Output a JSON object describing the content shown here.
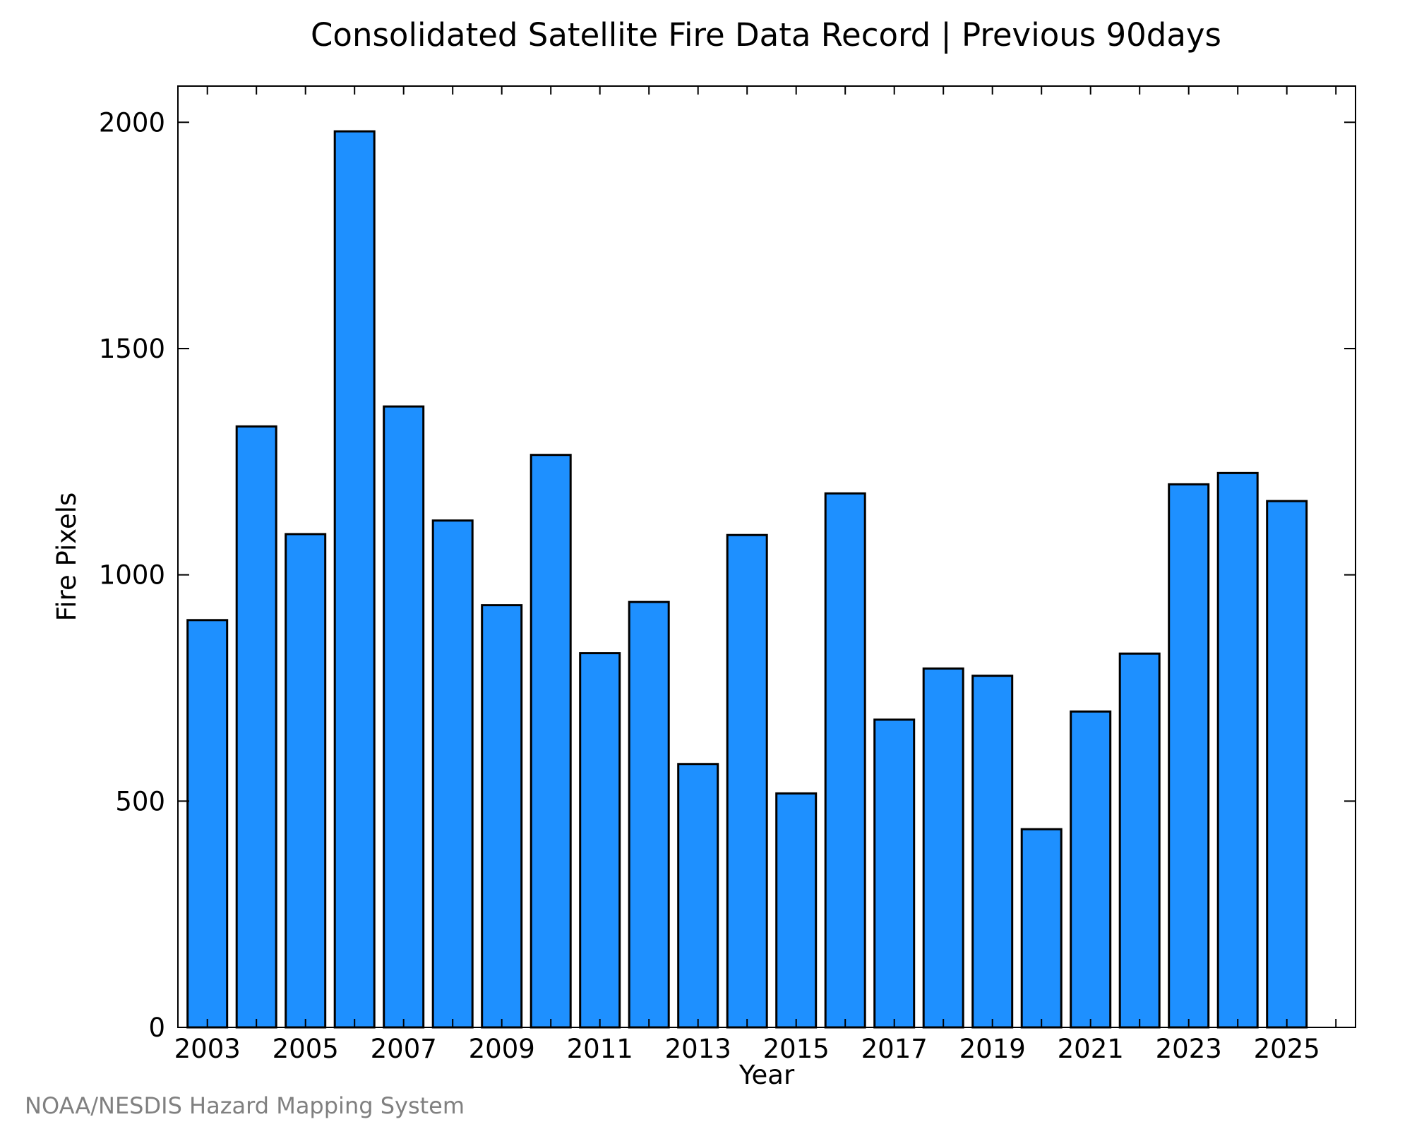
{
  "chart_data": {
    "type": "bar",
    "title": "Consolidated Satellite Fire Data Record | Previous 90days",
    "xlabel": "Year",
    "ylabel": "Fire Pixels",
    "ylim": [
      0,
      2080
    ],
    "yticks": [
      0,
      500,
      1000,
      1500,
      2000
    ],
    "xlim": [
      2002.4,
      2026.4
    ],
    "xticks": [
      2003,
      2005,
      2007,
      2009,
      2011,
      2013,
      2015,
      2017,
      2019,
      2021,
      2023,
      2025
    ],
    "minor_xticks": [
      2004,
      2006,
      2008,
      2010,
      2012,
      2014,
      2016,
      2018,
      2020,
      2022,
      2024,
      2026
    ],
    "grid": false,
    "categories": [
      2003,
      2004,
      2005,
      2006,
      2007,
      2008,
      2009,
      2010,
      2011,
      2012,
      2013,
      2014,
      2015,
      2016,
      2017,
      2018,
      2019,
      2020,
      2021,
      2022,
      2023,
      2024,
      2025
    ],
    "values": [
      900,
      1328,
      1090,
      1980,
      1372,
      1120,
      933,
      1265,
      827,
      940,
      582,
      1088,
      517,
      1180,
      680,
      793,
      777,
      438,
      698,
      826,
      1200,
      1225,
      1163
    ],
    "bar_color": "#1e90ff",
    "edge_color": "#000000",
    "credit": "NOAA/NESDIS Hazard Mapping System"
  }
}
